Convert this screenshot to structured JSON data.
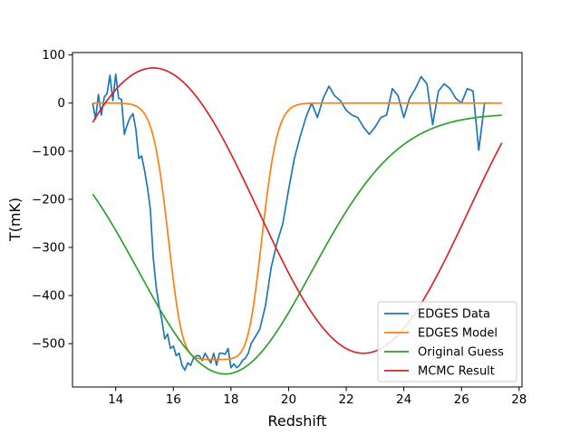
{
  "chart_data": {
    "type": "line",
    "title": "",
    "xlabel": "Redshift",
    "ylabel": "T(mK)",
    "xlim": [
      12.5,
      28.1
    ],
    "ylim": [
      -590,
      105
    ],
    "xticks": [
      14,
      16,
      18,
      20,
      22,
      24,
      26,
      28
    ],
    "yticks": [
      100,
      0,
      -100,
      -200,
      -300,
      -400,
      -500
    ],
    "grid": false,
    "legend_position": "lower-right",
    "series": [
      {
        "name": "EDGES Data",
        "color": "#1f77b4",
        "x": [
          13.2,
          13.3,
          13.4,
          13.5,
          13.6,
          13.7,
          13.8,
          13.9,
          14.0,
          14.1,
          14.2,
          14.3,
          14.4,
          14.5,
          14.6,
          14.7,
          14.8,
          14.9,
          15.0,
          15.1,
          15.2,
          15.3,
          15.4,
          15.5,
          15.6,
          15.7,
          15.8,
          15.9,
          16.0,
          16.1,
          16.2,
          16.3,
          16.4,
          16.5,
          16.6,
          16.7,
          16.8,
          16.9,
          17.0,
          17.1,
          17.2,
          17.3,
          17.4,
          17.5,
          17.6,
          17.7,
          17.8,
          17.9,
          18.0,
          18.1,
          18.2,
          18.3,
          18.4,
          18.5,
          18.6,
          18.7,
          18.8,
          18.9,
          19.0,
          19.2,
          19.4,
          19.6,
          19.8,
          20.0,
          20.2,
          20.4,
          20.6,
          20.8,
          21.0,
          21.2,
          21.4,
          21.6,
          21.8,
          22.0,
          22.2,
          22.4,
          22.6,
          22.8,
          23.0,
          23.2,
          23.4,
          23.6,
          23.8,
          24.0,
          24.2,
          24.4,
          24.6,
          24.8,
          25.0,
          25.2,
          25.4,
          25.6,
          25.8,
          26.0,
          26.2,
          26.4,
          26.6,
          26.8,
          27.0
        ],
        "y": [
          0,
          -33,
          18,
          -25,
          12,
          20,
          58,
          5,
          60,
          10,
          8,
          -65,
          -45,
          -30,
          -22,
          -55,
          -115,
          -110,
          -140,
          -175,
          -220,
          -320,
          -380,
          -420,
          -450,
          -490,
          -480,
          -510,
          -505,
          -525,
          -520,
          -545,
          -555,
          -540,
          -545,
          -530,
          -525,
          -525,
          -535,
          -520,
          -530,
          -540,
          -520,
          -545,
          -520,
          -520,
          -522,
          -510,
          -550,
          -542,
          -550,
          -545,
          -535,
          -530,
          -520,
          -500,
          -490,
          -480,
          -470,
          -420,
          -340,
          -290,
          -250,
          -180,
          -115,
          -70,
          -30,
          0,
          -30,
          10,
          35,
          15,
          5,
          -15,
          -25,
          -30,
          -50,
          -65,
          -50,
          -30,
          -25,
          30,
          15,
          -30,
          10,
          30,
          55,
          40,
          -45,
          25,
          40,
          30,
          10,
          0,
          30,
          25,
          -98,
          0,
          0
        ],
        "annotations": []
      },
      {
        "name": "EDGES Model",
        "color": "#ff7f0e",
        "model": "edges"
      },
      {
        "name": "Original Guess",
        "color": "#2ca02c",
        "model": "gaussian",
        "params": {
          "amp": -541,
          "center": 17.8,
          "sigma": 3.0,
          "offset": -22
        }
      },
      {
        "name": "MCMC Result",
        "color": "#d62728",
        "model": "mcmc"
      }
    ]
  }
}
